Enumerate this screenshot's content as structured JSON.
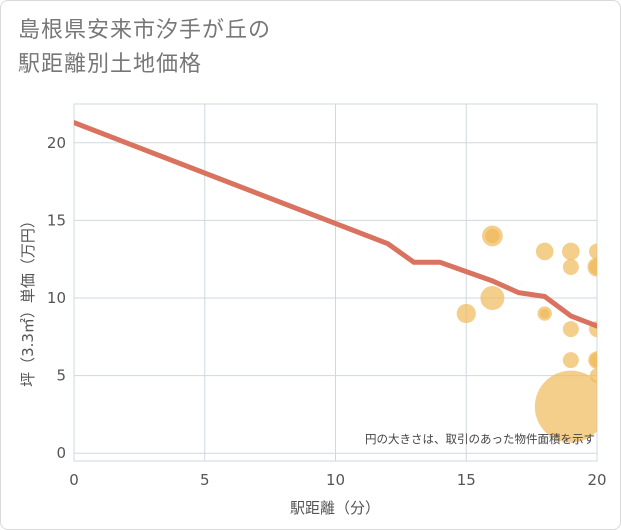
{
  "title_lines": [
    "島根県安来市汐手が丘の",
    "駅距離別土地価格"
  ],
  "chart_data": {
    "type": "scatter+line",
    "xlabel": "駅距離（分）",
    "ylabel": "坪（3.3㎡）単価（万円）",
    "xlim": [
      0,
      20
    ],
    "ylim": [
      -0.5,
      22.5
    ],
    "x_ticks": [
      0,
      5,
      10,
      15,
      20
    ],
    "y_ticks": [
      0,
      5,
      10,
      15,
      20
    ],
    "grid": true,
    "note": "円の大きさは、取引のあった物件面積を示す",
    "line_series": {
      "name": "trend",
      "color": "#d9725f",
      "points": [
        {
          "x": 0,
          "y": 21.3
        },
        {
          "x": 12,
          "y": 13.5
        },
        {
          "x": 13,
          "y": 12.3
        },
        {
          "x": 14,
          "y": 12.3
        },
        {
          "x": 15,
          "y": 11.7
        },
        {
          "x": 16,
          "y": 11.1
        },
        {
          "x": 17,
          "y": 10.35
        },
        {
          "x": 18,
          "y": 10.1
        },
        {
          "x": 19,
          "y": 8.85
        },
        {
          "x": 20,
          "y": 8.2
        }
      ]
    },
    "bubble_series": {
      "name": "transactions",
      "color": "#f0b95a",
      "points": [
        {
          "x": 16,
          "y": 14,
          "size": 1.3
        },
        {
          "x": 16,
          "y": 14,
          "size": 0.9
        },
        {
          "x": 16,
          "y": 10,
          "size": 1.5
        },
        {
          "x": 15,
          "y": 9,
          "size": 1.2
        },
        {
          "x": 18,
          "y": 13,
          "size": 1.1
        },
        {
          "x": 18,
          "y": 9,
          "size": 0.9
        },
        {
          "x": 18,
          "y": 9,
          "size": 0.6
        },
        {
          "x": 19,
          "y": 13,
          "size": 1.1
        },
        {
          "x": 19,
          "y": 12,
          "size": 1.0
        },
        {
          "x": 19,
          "y": 8,
          "size": 1.0
        },
        {
          "x": 19,
          "y": 6,
          "size": 1.0
        },
        {
          "x": 19,
          "y": 3,
          "size": 4.5
        },
        {
          "x": 20,
          "y": 13,
          "size": 1.0
        },
        {
          "x": 20,
          "y": 12,
          "size": 1.2
        },
        {
          "x": 20,
          "y": 12,
          "size": 1.0
        },
        {
          "x": 20,
          "y": 8,
          "size": 1.0
        },
        {
          "x": 20,
          "y": 6,
          "size": 1.1
        },
        {
          "x": 20,
          "y": 6,
          "size": 0.9
        },
        {
          "x": 20,
          "y": 5,
          "size": 0.9
        }
      ]
    }
  }
}
